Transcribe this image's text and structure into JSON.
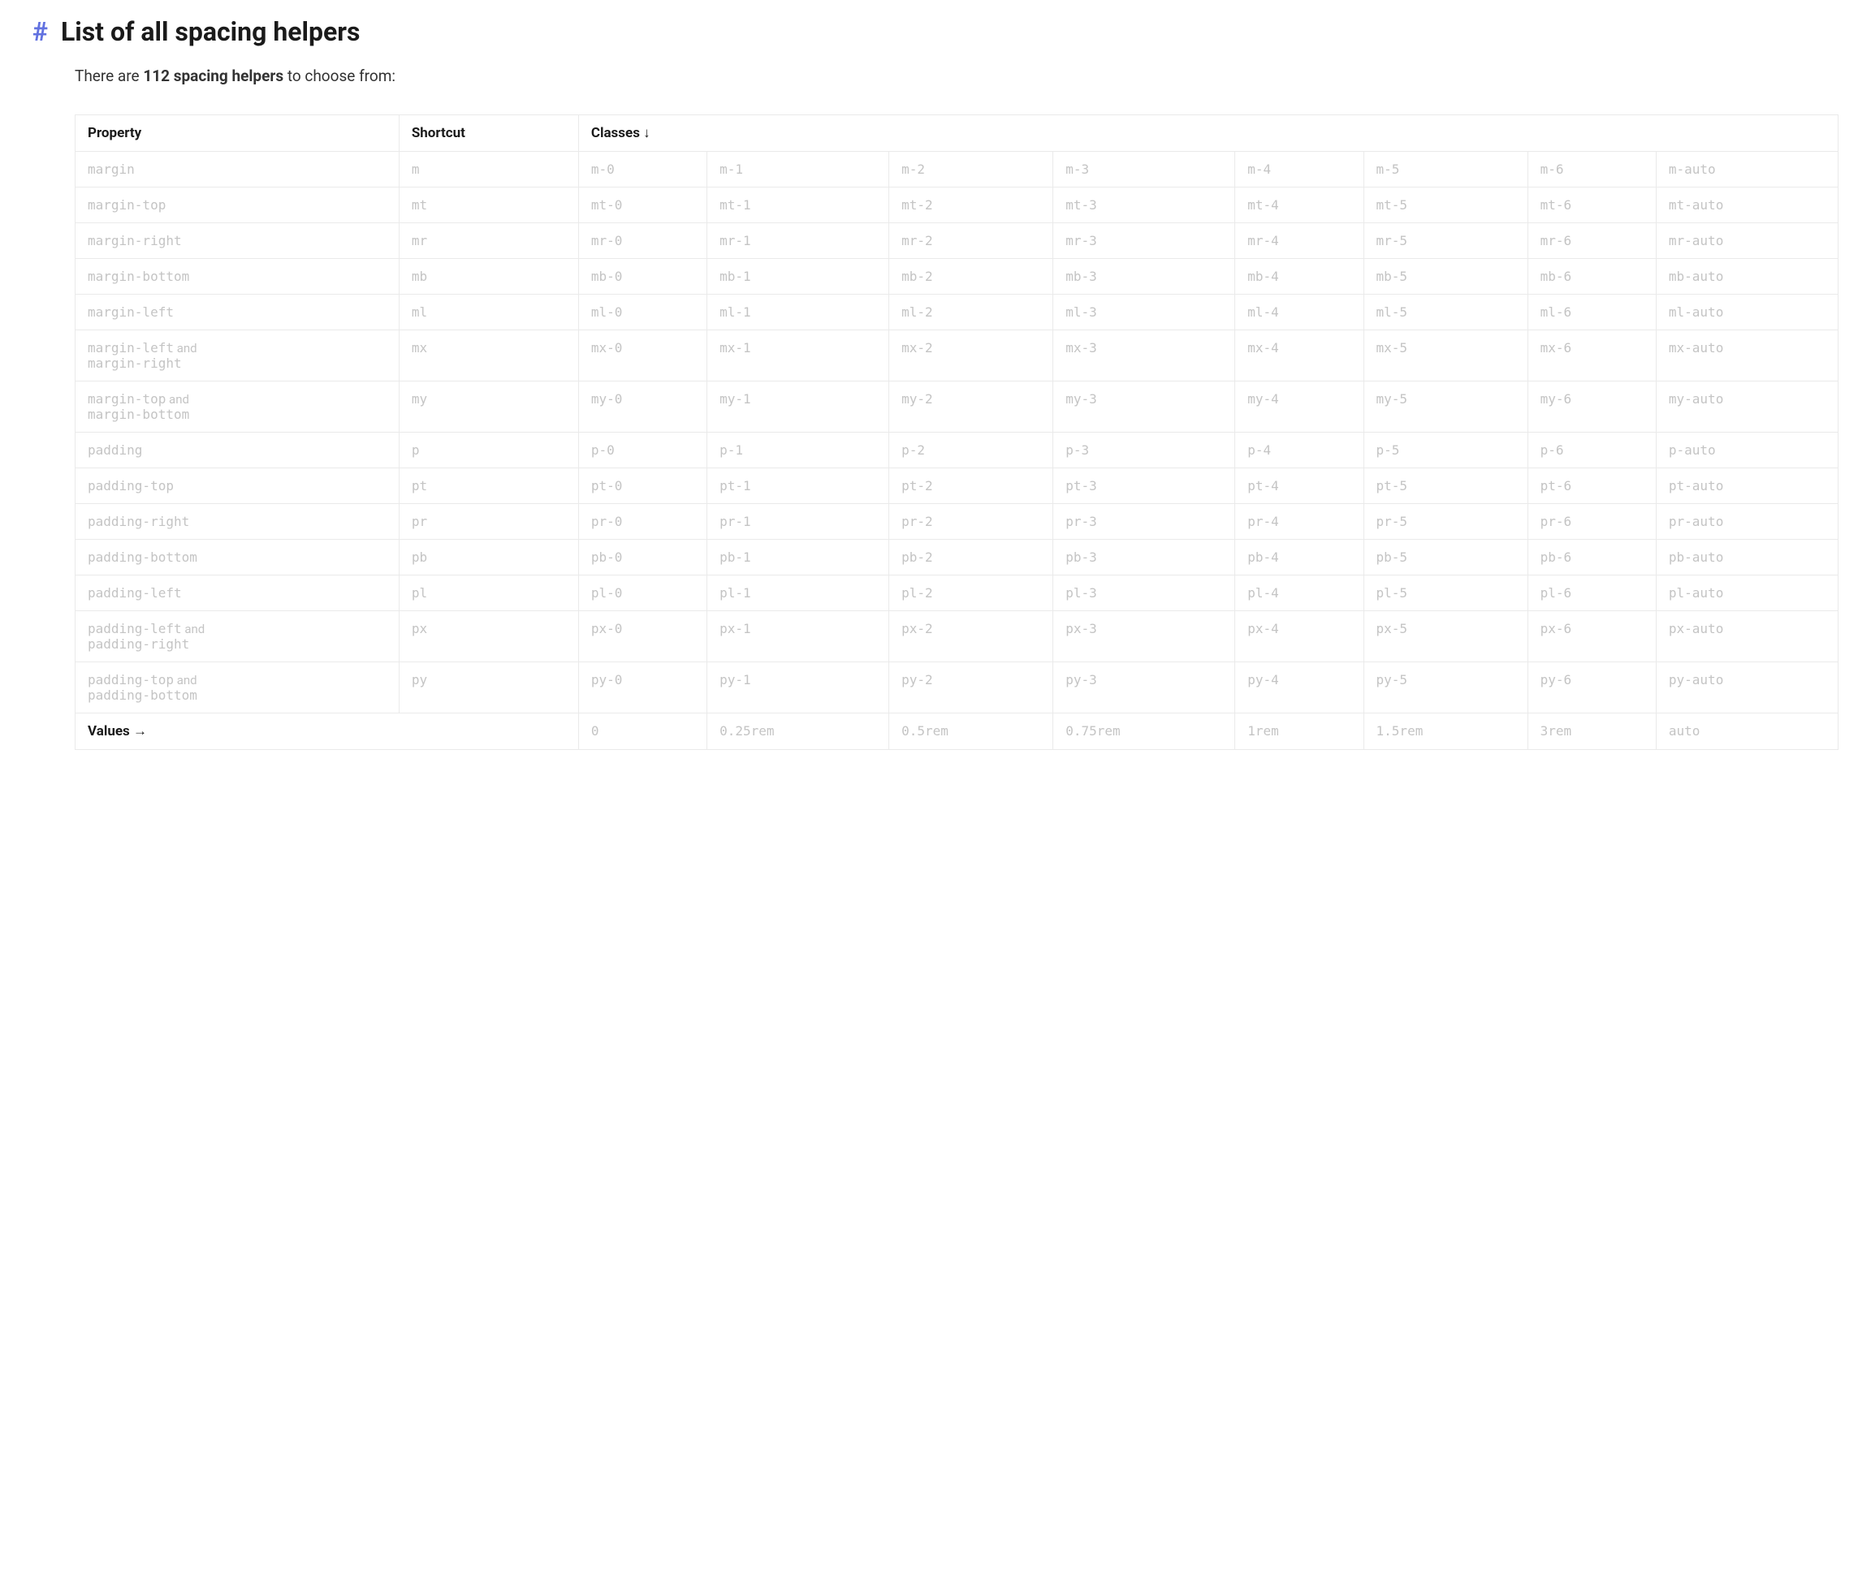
{
  "heading": {
    "hash": "#",
    "title": "List of all spacing helpers"
  },
  "subtitle": {
    "prefix": "There are ",
    "bold": "112 spacing helpers",
    "suffix": " to choose from:"
  },
  "table": {
    "headers": {
      "property": "Property",
      "shortcut": "Shortcut",
      "classes": "Classes ↓"
    },
    "rows": [
      {
        "property_parts": [
          "margin"
        ],
        "shortcut": "m",
        "classes": [
          "m-0",
          "m-1",
          "m-2",
          "m-3",
          "m-4",
          "m-5",
          "m-6",
          "m-auto"
        ]
      },
      {
        "property_parts": [
          "margin-top"
        ],
        "shortcut": "mt",
        "classes": [
          "mt-0",
          "mt-1",
          "mt-2",
          "mt-3",
          "mt-4",
          "mt-5",
          "mt-6",
          "mt-auto"
        ]
      },
      {
        "property_parts": [
          "margin-right"
        ],
        "shortcut": "mr",
        "classes": [
          "mr-0",
          "mr-1",
          "mr-2",
          "mr-3",
          "mr-4",
          "mr-5",
          "mr-6",
          "mr-auto"
        ]
      },
      {
        "property_parts": [
          "margin-bottom"
        ],
        "shortcut": "mb",
        "classes": [
          "mb-0",
          "mb-1",
          "mb-2",
          "mb-3",
          "mb-4",
          "mb-5",
          "mb-6",
          "mb-auto"
        ]
      },
      {
        "property_parts": [
          "margin-left"
        ],
        "shortcut": "ml",
        "classes": [
          "ml-0",
          "ml-1",
          "ml-2",
          "ml-3",
          "ml-4",
          "ml-5",
          "ml-6",
          "ml-auto"
        ]
      },
      {
        "property_parts": [
          "margin-left",
          "margin-right"
        ],
        "shortcut": "mx",
        "classes": [
          "mx-0",
          "mx-1",
          "mx-2",
          "mx-3",
          "mx-4",
          "mx-5",
          "mx-6",
          "mx-auto"
        ]
      },
      {
        "property_parts": [
          "margin-top",
          "margin-bottom"
        ],
        "shortcut": "my",
        "classes": [
          "my-0",
          "my-1",
          "my-2",
          "my-3",
          "my-4",
          "my-5",
          "my-6",
          "my-auto"
        ]
      },
      {
        "property_parts": [
          "padding"
        ],
        "shortcut": "p",
        "classes": [
          "p-0",
          "p-1",
          "p-2",
          "p-3",
          "p-4",
          "p-5",
          "p-6",
          "p-auto"
        ]
      },
      {
        "property_parts": [
          "padding-top"
        ],
        "shortcut": "pt",
        "classes": [
          "pt-0",
          "pt-1",
          "pt-2",
          "pt-3",
          "pt-4",
          "pt-5",
          "pt-6",
          "pt-auto"
        ]
      },
      {
        "property_parts": [
          "padding-right"
        ],
        "shortcut": "pr",
        "classes": [
          "pr-0",
          "pr-1",
          "pr-2",
          "pr-3",
          "pr-4",
          "pr-5",
          "pr-6",
          "pr-auto"
        ]
      },
      {
        "property_parts": [
          "padding-bottom"
        ],
        "shortcut": "pb",
        "classes": [
          "pb-0",
          "pb-1",
          "pb-2",
          "pb-3",
          "pb-4",
          "pb-5",
          "pb-6",
          "pb-auto"
        ]
      },
      {
        "property_parts": [
          "padding-left"
        ],
        "shortcut": "pl",
        "classes": [
          "pl-0",
          "pl-1",
          "pl-2",
          "pl-3",
          "pl-4",
          "pl-5",
          "pl-6",
          "pl-auto"
        ]
      },
      {
        "property_parts": [
          "padding-left",
          "padding-right"
        ],
        "shortcut": "px",
        "classes": [
          "px-0",
          "px-1",
          "px-2",
          "px-3",
          "px-4",
          "px-5",
          "px-6",
          "px-auto"
        ]
      },
      {
        "property_parts": [
          "padding-top",
          "padding-bottom"
        ],
        "shortcut": "py",
        "classes": [
          "py-0",
          "py-1",
          "py-2",
          "py-3",
          "py-4",
          "py-5",
          "py-6",
          "py-auto"
        ]
      }
    ],
    "values_row": {
      "label": "Values →",
      "values": [
        "0",
        "0.25rem",
        "0.5rem",
        "0.75rem",
        "1rem",
        "1.5rem",
        "3rem",
        "auto"
      ]
    },
    "and_word": "and"
  },
  "colors": {
    "hash": "#6272e0",
    "text_dark": "#1a1a1a",
    "text_muted": "#c4c4c4",
    "border": "#eaeaea",
    "background": "#ffffff"
  },
  "fonts": {
    "heading_size": 32,
    "subtitle_size": 19,
    "th_size": 17,
    "td_mono_size": 16
  }
}
